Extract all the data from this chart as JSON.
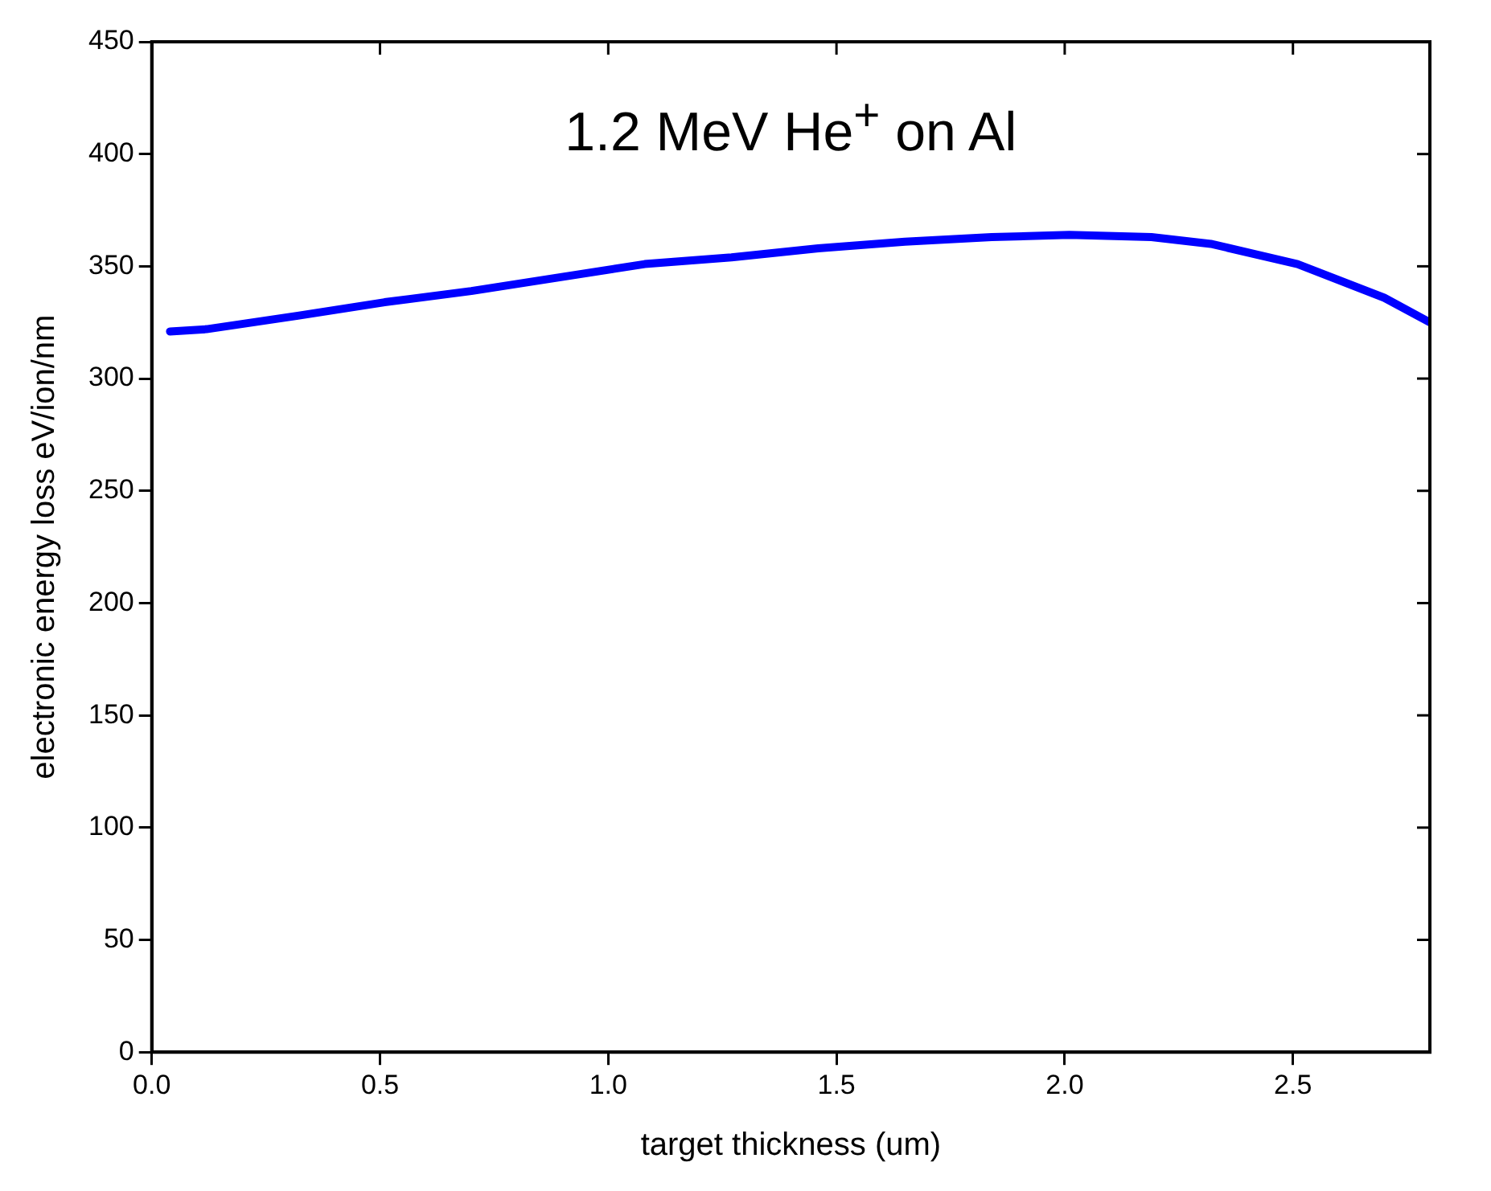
{
  "chart_data": {
    "type": "line",
    "title": "1.2 MeV He$^{+}$ on Al",
    "xlabel": "target thickness (um)",
    "ylabel": "electronic energy loss eV/ion/nm",
    "xlim": [
      0,
      2.8
    ],
    "xticks": [
      {
        "value": 0,
        "label": "0.0"
      },
      0.5,
      {
        "value": 1,
        "label": "1.0"
      },
      1.5,
      {
        "value": 2,
        "label": "2.0"
      },
      2.5
    ],
    "ylim": [
      0,
      450
    ],
    "yticks": [
      0,
      50,
      100,
      150,
      200,
      250,
      300,
      350,
      400,
      450
    ],
    "grid": false,
    "legend": false,
    "marker": "none",
    "line_style": "solid",
    "series": [
      {
        "color": "#0000ff",
        "x": [
          0.04,
          0.12,
          0.32,
          0.51,
          0.7,
          0.89,
          1.08,
          1.27,
          1.46,
          1.65,
          1.84,
          2.01,
          2.19,
          2.32,
          2.51,
          2.7,
          2.8
        ],
        "values": [
          321,
          322,
          328,
          334,
          339,
          345,
          351,
          354,
          358,
          361,
          363,
          364,
          363,
          360,
          351,
          336,
          325
        ]
      }
    ]
  }
}
